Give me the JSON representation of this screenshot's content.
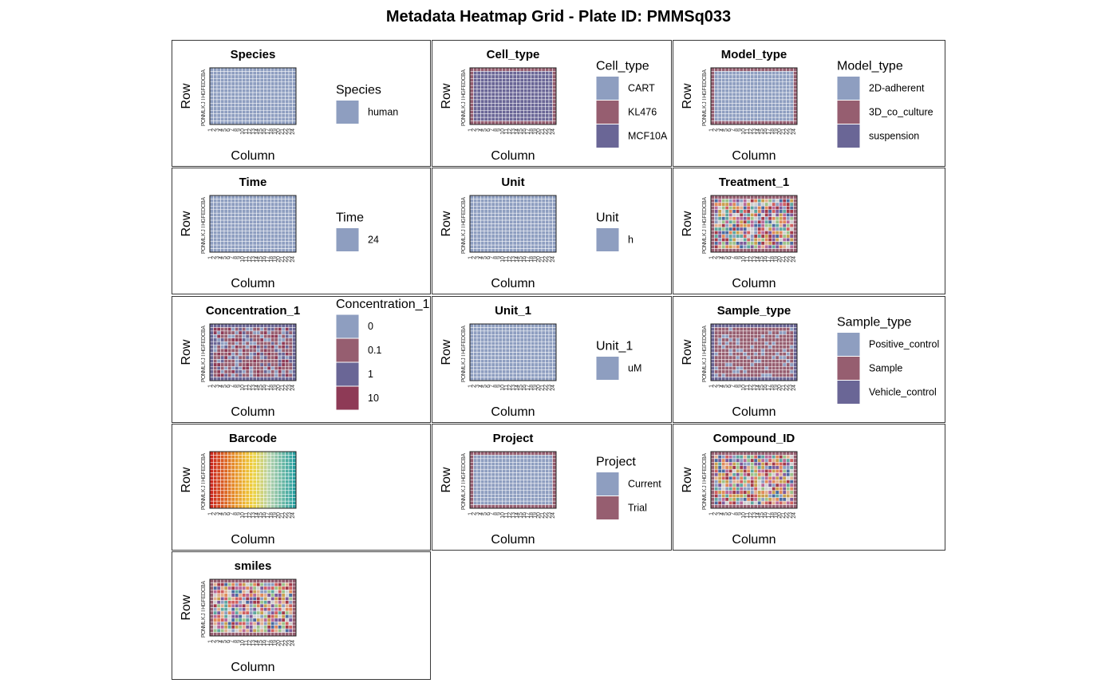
{
  "title": "Metadata Heatmap Grid - Plate ID: PMMSq033",
  "plate": {
    "rows": [
      "A",
      "B",
      "C",
      "D",
      "E",
      "F",
      "G",
      "H",
      "I",
      "J",
      "K",
      "L",
      "M",
      "N",
      "O",
      "P"
    ],
    "columns": [
      "1",
      "2",
      "3",
      "4",
      "5",
      "6",
      "7",
      "8",
      "9",
      "10",
      "11",
      "12",
      "13",
      "14",
      "15",
      "16",
      "17",
      "18",
      "19",
      "20",
      "21",
      "22",
      "23",
      "24"
    ]
  },
  "colors": {
    "c1": "#8E9EC0",
    "c2": "#965E70",
    "c3": "#6A6696",
    "c4": "#8E3A56",
    "grid_line": "#ffffff",
    "frame": "#222222"
  },
  "chart_data": [
    {
      "type": "heatmap",
      "title": "Species",
      "xlabel": "Column",
      "ylabel": "Row",
      "pattern": "uniform",
      "legend": {
        "title": "Species",
        "items": [
          {
            "label": "human",
            "color": "#8E9EC0"
          }
        ]
      }
    },
    {
      "type": "heatmap",
      "title": "Cell_type",
      "xlabel": "Column",
      "ylabel": "Row",
      "pattern": "cell",
      "legend": {
        "title": "Cell_type",
        "items": [
          {
            "label": "CART",
            "color": "#8E9EC0"
          },
          {
            "label": "KL476",
            "color": "#965E70"
          },
          {
            "label": "MCF10A",
            "color": "#6A6696"
          }
        ]
      }
    },
    {
      "type": "heatmap",
      "title": "Model_type",
      "xlabel": "Column",
      "ylabel": "Row",
      "pattern": "model",
      "legend": {
        "title": "Model_type",
        "items": [
          {
            "label": "2D-adherent",
            "color": "#8E9EC0"
          },
          {
            "label": "3D_co_culture",
            "color": "#965E70"
          },
          {
            "label": "suspension",
            "color": "#6A6696"
          }
        ]
      }
    },
    {
      "type": "heatmap",
      "title": "Time",
      "xlabel": "Column",
      "ylabel": "Row",
      "pattern": "uniform",
      "legend": {
        "title": "Time",
        "items": [
          {
            "label": "24",
            "color": "#8E9EC0"
          }
        ]
      }
    },
    {
      "type": "heatmap",
      "title": "Unit",
      "xlabel": "Column",
      "ylabel": "Row",
      "pattern": "uniform",
      "legend": {
        "title": "Unit",
        "items": [
          {
            "label": "h",
            "color": "#8E9EC0"
          }
        ]
      }
    },
    {
      "type": "heatmap",
      "title": "Treatment_1",
      "xlabel": "Column",
      "ylabel": "Row",
      "pattern": "many",
      "legend": null
    },
    {
      "type": "heatmap",
      "title": "Concentration_1",
      "xlabel": "Column",
      "ylabel": "Row",
      "pattern": "conc",
      "legend": {
        "title": "Concentration_1",
        "items": [
          {
            "label": "0",
            "color": "#8E9EC0"
          },
          {
            "label": "0.1",
            "color": "#965E70"
          },
          {
            "label": "1",
            "color": "#6A6696"
          },
          {
            "label": "10",
            "color": "#8E3A56"
          }
        ]
      }
    },
    {
      "type": "heatmap",
      "title": "Unit_1",
      "xlabel": "Column",
      "ylabel": "Row",
      "pattern": "uniform",
      "legend": {
        "title": "Unit_1",
        "items": [
          {
            "label": "uM",
            "color": "#8E9EC0"
          }
        ]
      }
    },
    {
      "type": "heatmap",
      "title": "Sample_type",
      "xlabel": "Column",
      "ylabel": "Row",
      "pattern": "sample",
      "legend": {
        "title": "Sample_type",
        "items": [
          {
            "label": "Positive_control",
            "color": "#8E9EC0"
          },
          {
            "label": "Sample",
            "color": "#965E70"
          },
          {
            "label": "Vehicle_control",
            "color": "#6A6696"
          }
        ]
      }
    },
    {
      "type": "heatmap",
      "title": "Barcode",
      "xlabel": "Column",
      "ylabel": "Row",
      "pattern": "gradient",
      "legend": null
    },
    {
      "type": "heatmap",
      "title": "Project",
      "xlabel": "Column",
      "ylabel": "Row",
      "pattern": "project",
      "legend": {
        "title": "Project",
        "items": [
          {
            "label": "Current",
            "color": "#8E9EC0"
          },
          {
            "label": "Trial",
            "color": "#965E70"
          }
        ]
      }
    },
    {
      "type": "heatmap",
      "title": "Compound_ID",
      "xlabel": "Column",
      "ylabel": "Row",
      "pattern": "many",
      "legend": null
    },
    {
      "type": "heatmap",
      "title": "smiles",
      "xlabel": "Column",
      "ylabel": "Row",
      "pattern": "many",
      "legend": null
    }
  ]
}
